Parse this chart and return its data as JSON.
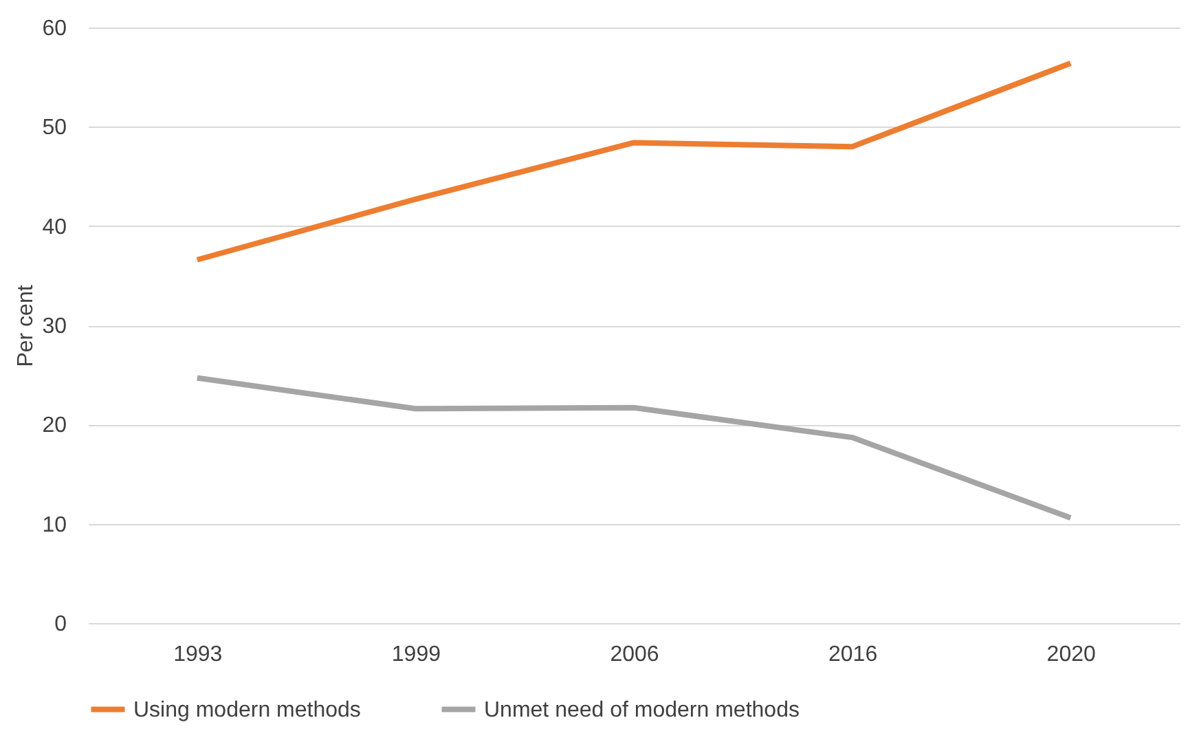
{
  "chart_data": {
    "type": "line",
    "ylabel": "Per cent",
    "categories": [
      "1993",
      "1999",
      "2006",
      "2016",
      "2020"
    ],
    "series": [
      {
        "name": "Using modern methods",
        "color": "#ed7d31",
        "values": [
          36.6,
          42.7,
          48.4,
          48.0,
          56.4
        ]
      },
      {
        "name": "Unmet need of modern methods",
        "color": "#a5a5a5",
        "values": [
          24.7,
          21.6,
          21.7,
          18.7,
          10.6
        ]
      }
    ],
    "ylim": [
      0,
      60
    ],
    "yticks": [
      0,
      10,
      20,
      30,
      40,
      50,
      60
    ],
    "grid": "y",
    "legend": "bottom",
    "marker": "none",
    "line_style": "solid"
  }
}
